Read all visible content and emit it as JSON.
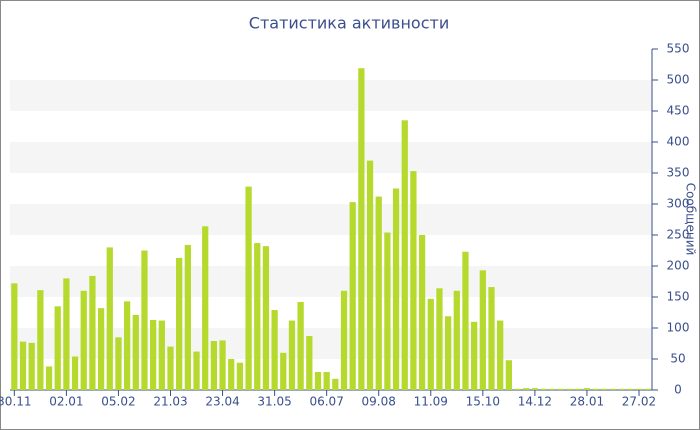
{
  "chart_data": {
    "type": "bar",
    "title": "Статистика активности",
    "y_label": "Сообщений",
    "categories": [
      "30.11",
      null,
      null,
      null,
      null,
      null,
      "02.01",
      null,
      null,
      null,
      null,
      null,
      "05.02",
      null,
      null,
      null,
      null,
      null,
      "21.03",
      null,
      null,
      null,
      null,
      null,
      "23.04",
      null,
      null,
      null,
      null,
      null,
      "31.05",
      null,
      null,
      null,
      null,
      null,
      "06.07",
      null,
      null,
      null,
      null,
      null,
      "09.08",
      null,
      null,
      null,
      null,
      null,
      "11.09",
      null,
      null,
      null,
      null,
      null,
      "15.10",
      null,
      null,
      null,
      null,
      null,
      "14.12",
      null,
      null,
      null,
      null,
      null,
      "28.01",
      null,
      null,
      null,
      null,
      null,
      "27.02",
      null
    ],
    "values": [
      172,
      78,
      76,
      161,
      38,
      135,
      180,
      54,
      160,
      184,
      132,
      230,
      85,
      143,
      121,
      225,
      113,
      112,
      70,
      213,
      234,
      62,
      264,
      79,
      80,
      50,
      44,
      328,
      237,
      232,
      129,
      60,
      112,
      142,
      87,
      29,
      29,
      18,
      160,
      303,
      519,
      370,
      312,
      254,
      325,
      435,
      353,
      250,
      147,
      164,
      119,
      160,
      223,
      110,
      193,
      166,
      112,
      48,
      2,
      3,
      3,
      2,
      2,
      2,
      2,
      2,
      3,
      2,
      2,
      2,
      2,
      2,
      2,
      2
    ],
    "color": "#b5d92c",
    "ylim": [
      0,
      550
    ],
    "yticks": [
      0,
      50,
      100,
      150,
      200,
      250,
      300,
      350,
      400,
      450,
      500,
      550
    ],
    "grid": "bands"
  }
}
